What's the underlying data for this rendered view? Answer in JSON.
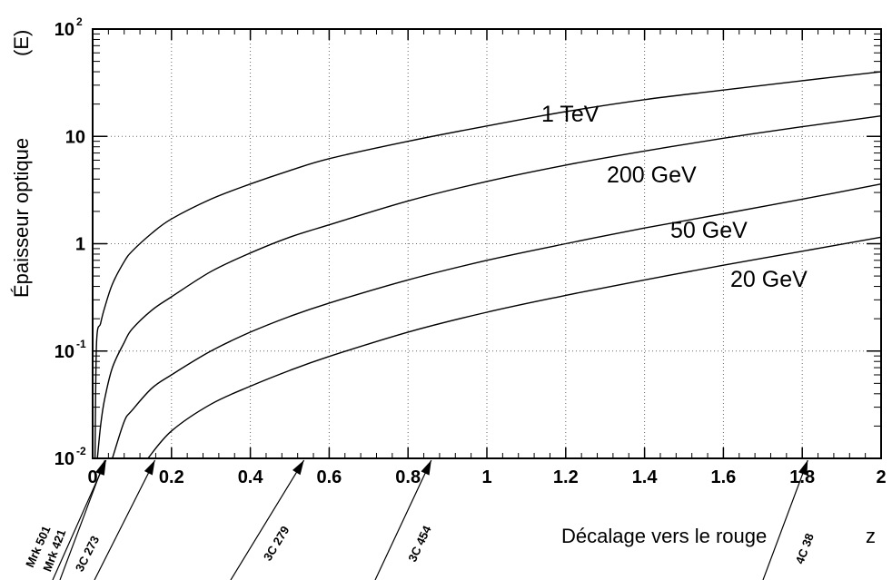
{
  "chart_data": {
    "type": "line",
    "title": "",
    "xlabel": "Décalage vers le rouge",
    "xlabel_symbol": "z",
    "ylabel": "Épaisseur optique",
    "ylabel_symbol": "(E)",
    "xlim": [
      0,
      2
    ],
    "ylim": [
      0.01,
      100
    ],
    "yscale": "log",
    "grid": true,
    "x_ticks": [
      {
        "value": 0,
        "label": "0"
      },
      {
        "value": 0.2,
        "label": "0.2"
      },
      {
        "value": 0.4,
        "label": "0.4"
      },
      {
        "value": 0.6,
        "label": "0.6"
      },
      {
        "value": 0.8,
        "label": "0.8"
      },
      {
        "value": 1,
        "label": "1"
      },
      {
        "value": 1.2,
        "label": "1.2"
      },
      {
        "value": 1.4,
        "label": "1.4"
      },
      {
        "value": 1.6,
        "label": "1.6"
      },
      {
        "value": 1.8,
        "label": "1.8"
      },
      {
        "value": 2,
        "label": "2"
      }
    ],
    "y_ticks": [
      {
        "value": 0.01,
        "base": "10",
        "exp": "-2"
      },
      {
        "value": 0.1,
        "base": "10",
        "exp": "-1"
      },
      {
        "value": 1,
        "base": "1",
        "exp": ""
      },
      {
        "value": 10,
        "base": "10",
        "exp": ""
      },
      {
        "value": 100,
        "base": "10",
        "exp": "2"
      }
    ],
    "series": [
      {
        "name": "1 TeV",
        "x": [
          0.006,
          0.01,
          0.02,
          0.03,
          0.05,
          0.08,
          0.1,
          0.15,
          0.2,
          0.3,
          0.4,
          0.5,
          0.6,
          0.8,
          1.0,
          1.2,
          1.4,
          1.6,
          1.8,
          2.0
        ],
        "y": [
          0.01,
          0.12,
          0.18,
          0.25,
          0.42,
          0.68,
          0.85,
          1.25,
          1.7,
          2.6,
          3.6,
          4.8,
          6.2,
          9.0,
          12.5,
          17,
          22,
          27,
          33,
          40
        ]
      },
      {
        "name": "200 GeV",
        "x": [
          0.012,
          0.02,
          0.03,
          0.05,
          0.08,
          0.1,
          0.15,
          0.2,
          0.3,
          0.4,
          0.5,
          0.6,
          0.8,
          1.0,
          1.2,
          1.4,
          1.6,
          1.8,
          2.0
        ],
        "y": [
          0.01,
          0.02,
          0.035,
          0.07,
          0.12,
          0.16,
          0.24,
          0.32,
          0.55,
          0.82,
          1.15,
          1.5,
          2.5,
          3.8,
          5.4,
          7.3,
          9.6,
          12.3,
          15.5
        ]
      },
      {
        "name": "50 GeV",
        "x": [
          0.05,
          0.08,
          0.1,
          0.15,
          0.2,
          0.3,
          0.4,
          0.5,
          0.6,
          0.8,
          1.0,
          1.2,
          1.4,
          1.6,
          1.8,
          2.0
        ],
        "y": [
          0.01,
          0.022,
          0.028,
          0.045,
          0.06,
          0.1,
          0.15,
          0.21,
          0.28,
          0.46,
          0.7,
          1.0,
          1.4,
          1.9,
          2.6,
          3.6
        ]
      },
      {
        "name": "20 GeV",
        "x": [
          0.14,
          0.2,
          0.3,
          0.4,
          0.5,
          0.6,
          0.8,
          1.0,
          1.2,
          1.4,
          1.6,
          1.8,
          2.0
        ],
        "y": [
          0.01,
          0.018,
          0.032,
          0.047,
          0.066,
          0.089,
          0.15,
          0.23,
          0.33,
          0.46,
          0.63,
          0.85,
          1.15
        ]
      }
    ],
    "annotations": [
      {
        "text": "Mrk 501",
        "x": 0.034
      },
      {
        "text": "Mrk 421",
        "x": 0.031
      },
      {
        "text": "3C 273",
        "x": 0.158
      },
      {
        "text": "3C 279",
        "x": 0.536
      },
      {
        "text": "3C 454",
        "x": 0.859
      },
      {
        "text": "4C 38",
        "x": 1.814
      }
    ]
  }
}
